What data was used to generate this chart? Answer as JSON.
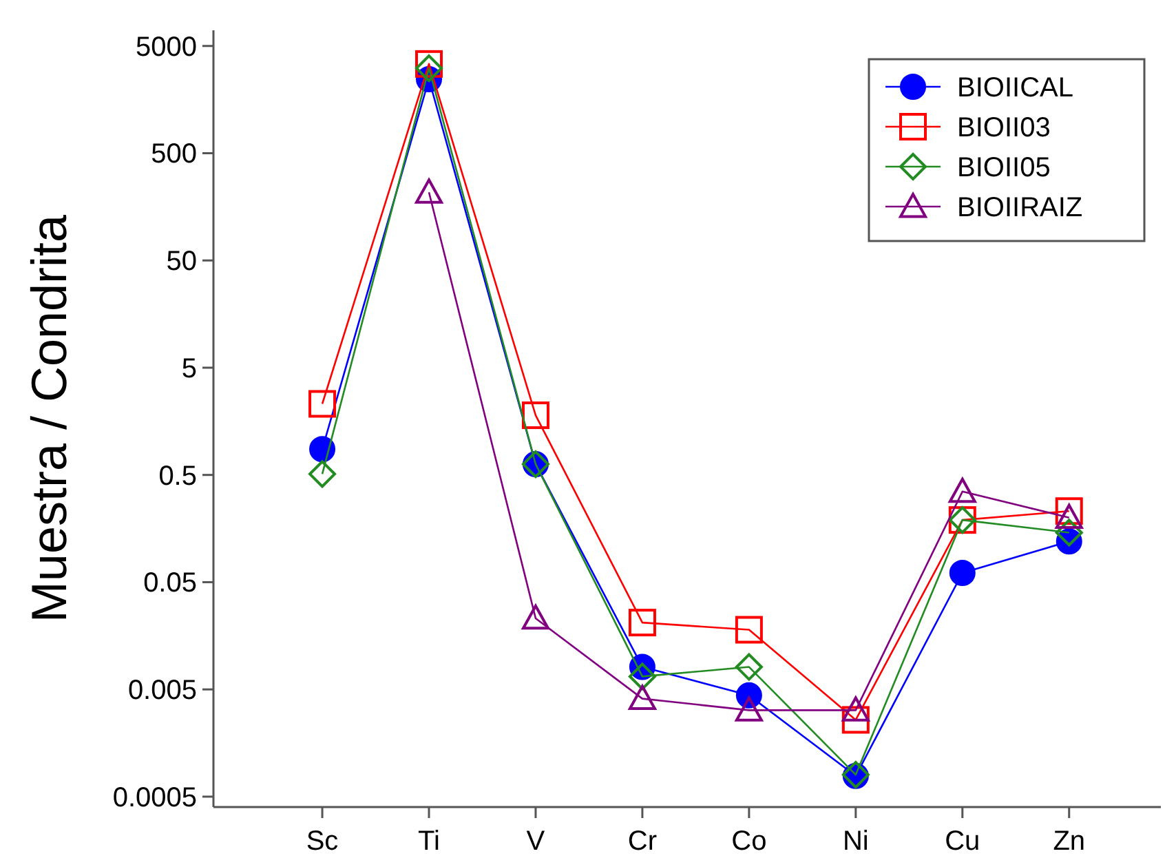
{
  "chart_data": {
    "type": "line",
    "ylabel": "Muestra / Condrita",
    "categories": [
      "Sc",
      "Ti",
      "V",
      "Cr",
      "Co",
      "Ni",
      "Cu",
      "Zn"
    ],
    "log": true,
    "ylim": [
      0.0004,
      7000
    ],
    "yticks": [
      0.0005,
      0.005,
      0.05,
      0.5,
      5,
      50,
      500,
      5000
    ],
    "grid": false,
    "legend": "top right",
    "series": [
      {
        "name": "BIOIICAL",
        "color": "#0000ff",
        "marker": "circle",
        "values": [
          0.87,
          2450,
          0.63,
          0.0081,
          0.0044,
          0.00078,
          0.061,
          0.12
        ]
      },
      {
        "name": "BIOII03",
        "color": "#ff0000",
        "marker": "square",
        "values": [
          2.3,
          3400,
          1.8,
          0.021,
          0.018,
          0.0026,
          0.19,
          0.23
        ]
      },
      {
        "name": "BIOII05",
        "color": "#228b22",
        "marker": "diamond",
        "values": [
          0.51,
          3100,
          0.63,
          0.0066,
          0.0081,
          0.0008,
          0.19,
          0.145
        ]
      },
      {
        "name": "BIOIIRAIZ",
        "color": "#800080",
        "marker": "triangle",
        "values": [
          null,
          216,
          0.023,
          0.0041,
          0.0032,
          0.0032,
          0.35,
          0.2
        ]
      }
    ]
  }
}
